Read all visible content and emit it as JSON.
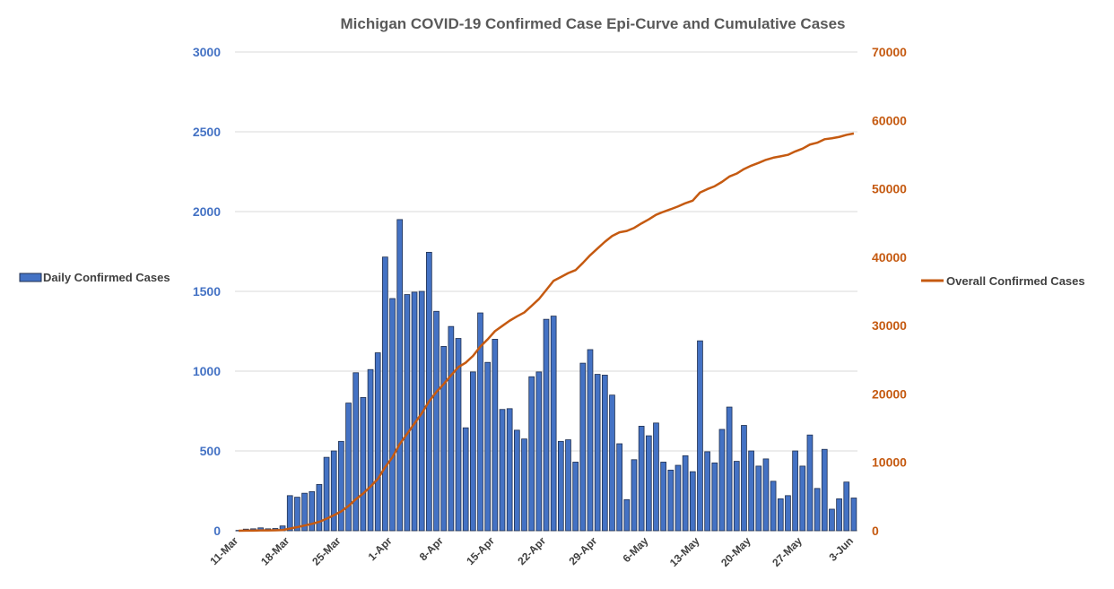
{
  "chart_data": {
    "type": "bar+line",
    "title": "Michigan COVID-19 Confirmed Case Epi-Curve and Cumulative Cases",
    "x_tick_labels": [
      "11-Mar",
      "18-Mar",
      "25-Mar",
      "1-Apr",
      "8-Apr",
      "15-Apr",
      "22-Apr",
      "29-Apr",
      "6-May",
      "13-May",
      "20-May",
      "27-May",
      "3-Jun"
    ],
    "x_dates_start": "11-Mar",
    "x_dates_end": "4-Jun",
    "y_left": {
      "range": [
        0,
        3000
      ],
      "ticks": [
        0,
        500,
        1000,
        1500,
        2000,
        2500,
        3000
      ],
      "color": "#4472c4"
    },
    "y_right": {
      "range": [
        0,
        70000
      ],
      "ticks": [
        0,
        10000,
        20000,
        30000,
        40000,
        50000,
        60000,
        70000
      ],
      "color": "#c55a11"
    },
    "grid": true,
    "series": [
      {
        "name": "Daily Confirmed Cases",
        "type": "bar",
        "axis": "left",
        "color": "#4472c4",
        "legend_position": "left",
        "values": [
          2,
          10,
          12,
          18,
          12,
          14,
          30,
          220,
          210,
          235,
          245,
          290,
          460,
          500,
          560,
          800,
          990,
          835,
          1010,
          1115,
          1715,
          1455,
          1950,
          1480,
          1495,
          1500,
          1745,
          1375,
          1155,
          1280,
          1205,
          645,
          995,
          1365,
          1055,
          1200,
          760,
          765,
          630,
          575,
          965,
          995,
          1325,
          1345,
          560,
          570,
          430,
          1050,
          1135,
          980,
          975,
          850,
          545,
          195,
          445,
          655,
          595,
          675,
          430,
          380,
          410,
          470,
          370,
          1190,
          495,
          425,
          635,
          775,
          435,
          660,
          500,
          405,
          450,
          310,
          200,
          220,
          500,
          405,
          600,
          265,
          510,
          135,
          200,
          305,
          205
        ]
      },
      {
        "name": "Overall Confirmed Cases",
        "type": "line",
        "axis": "right",
        "color": "#c55a11",
        "legend_position": "right",
        "values": [
          2,
          12,
          24,
          42,
          54,
          68,
          98,
          318,
          528,
          763,
          1008,
          1298,
          1758,
          2258,
          2818,
          3618,
          4608,
          5443,
          6453,
          7568,
          9283,
          10738,
          12688,
          14168,
          15663,
          17163,
          18908,
          20283,
          21438,
          22718,
          23923,
          24568,
          25563,
          26928,
          27983,
          29183,
          29943,
          30708,
          31338,
          31913,
          32878,
          33873,
          35198,
          36543,
          37103,
          37673,
          38103,
          39153,
          40288,
          41268,
          42243,
          43093,
          43638,
          43833,
          44278,
          44933,
          45528,
          46203,
          46633,
          47013,
          47423,
          47893,
          48263,
          49453,
          49948,
          50373,
          51008,
          51783,
          52218,
          52878,
          53378,
          53783,
          54233,
          54543,
          54743,
          54963,
          55463,
          55868,
          56468,
          56733,
          57243,
          57378,
          57578,
          57883,
          58088
        ]
      }
    ]
  }
}
